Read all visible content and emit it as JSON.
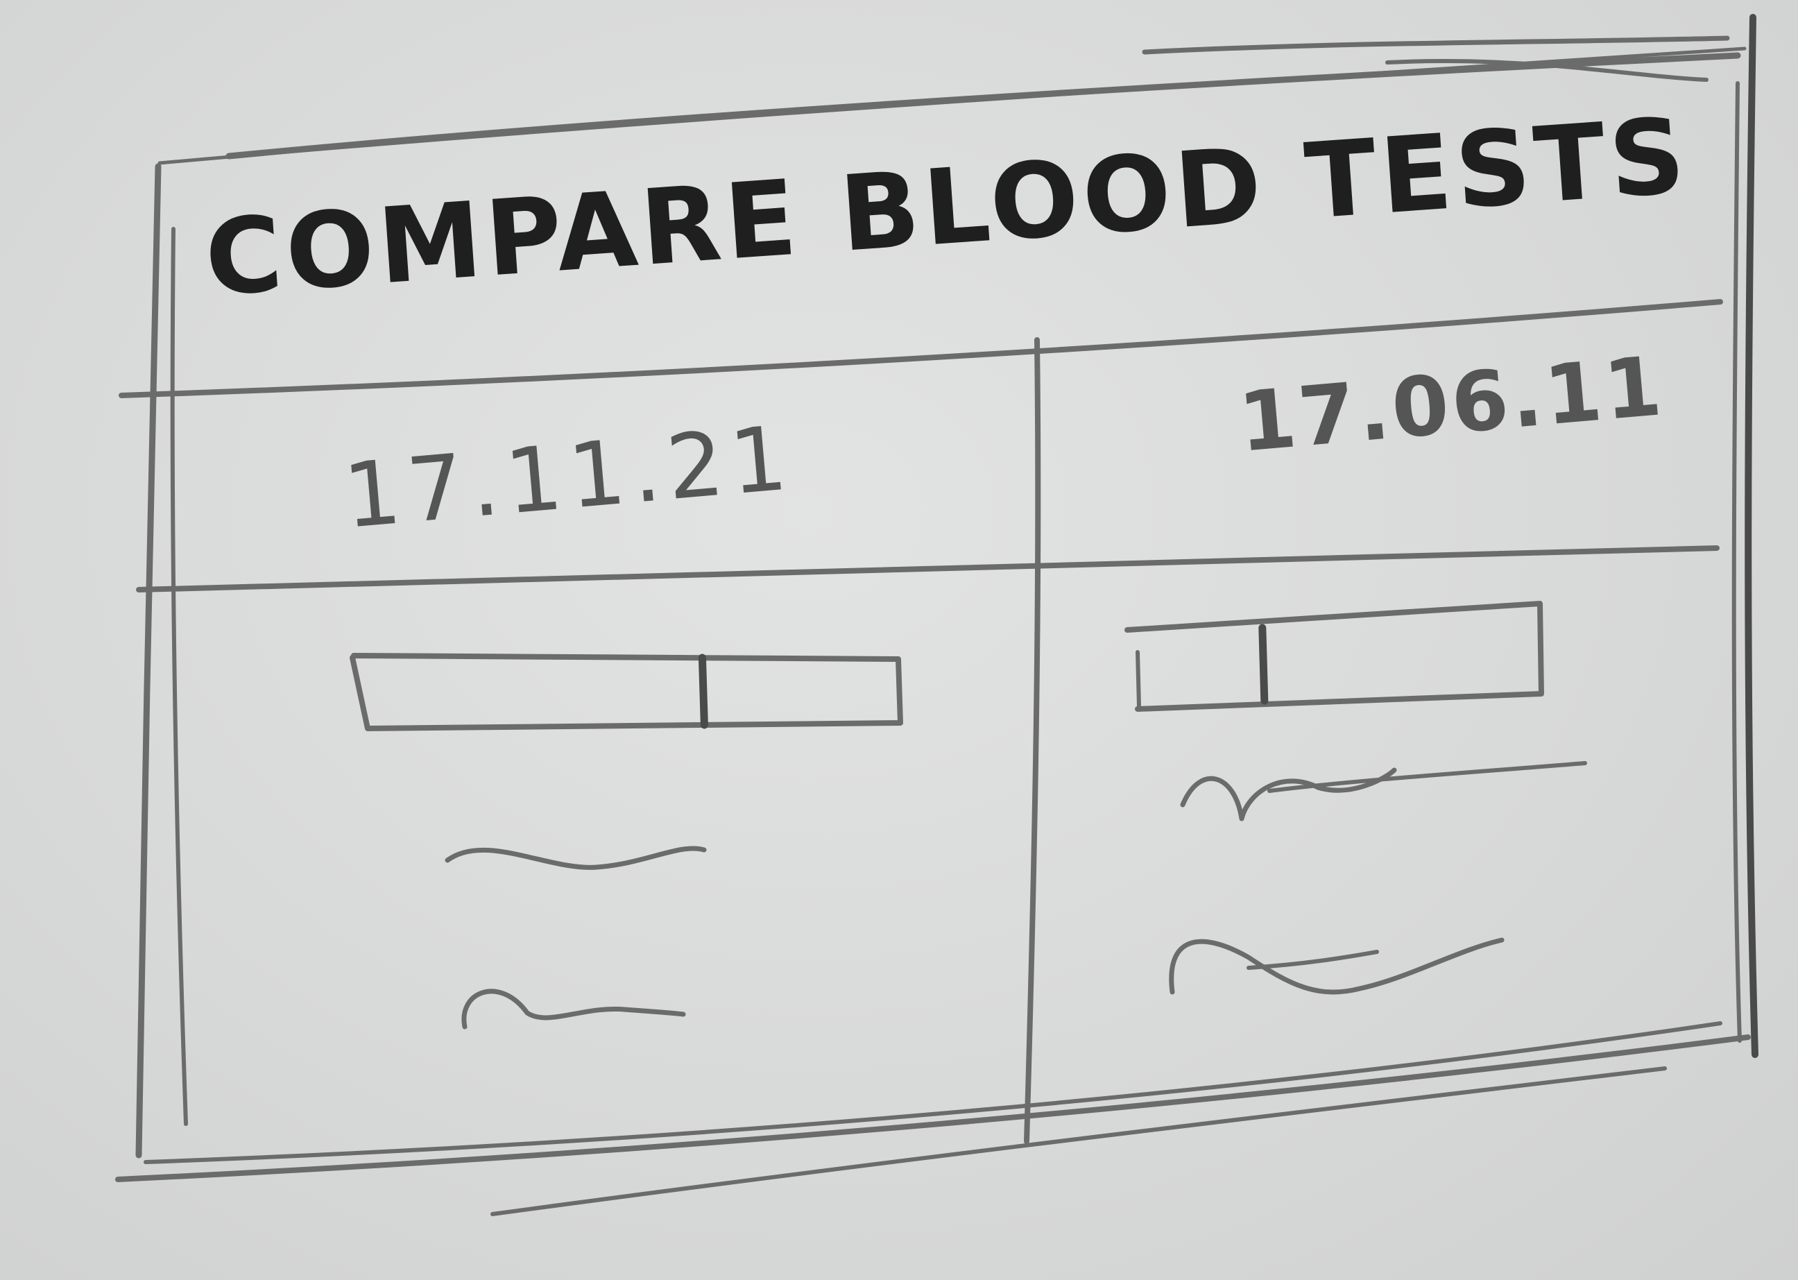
{
  "page": {
    "title": "COMPARE BLOOD TESTS"
  },
  "columns": [
    {
      "date": "17.11.21",
      "range_bar": {
        "marker_fraction": 0.64
      }
    },
    {
      "date": "17.06.11",
      "range_bar": {
        "marker_fraction": 0.31
      }
    }
  ]
}
